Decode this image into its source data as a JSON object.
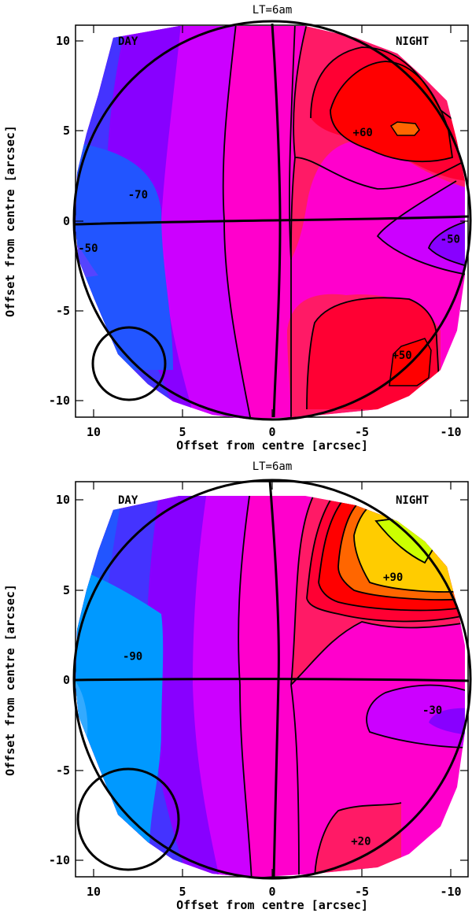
{
  "chart_data": [
    {
      "type": "contour",
      "title": "LT=6am",
      "xlabel": "Offset from centre [arcsec]",
      "ylabel": "Offset from centre [arcsec]",
      "xlim": [
        11,
        -11
      ],
      "ylim": [
        -11,
        11
      ],
      "x_ticks": [
        "10",
        "5",
        "0",
        "-5",
        "-10"
      ],
      "y_ticks": [
        "10",
        "5",
        "0",
        "-5",
        "-10"
      ],
      "day_label": "DAY",
      "night_label": "NIGHT",
      "contour_labels": [
        {
          "text": "+60",
          "x": -5.1,
          "y": 5
        },
        {
          "text": "-70",
          "x": 7.5,
          "y": 1.5
        },
        {
          "text": "-50",
          "x": 10.3,
          "y": -1.5
        },
        {
          "text": "-50",
          "x": -10.0,
          "y": -1
        },
        {
          "text": "+50",
          "x": -7.3,
          "y": -7.5
        }
      ],
      "beam": {
        "x": 8,
        "y": -8,
        "r": 2
      }
    },
    {
      "type": "contour",
      "title": "LT=6am",
      "xlabel": "Offset from centre [arcsec]",
      "ylabel": "Offset from centre [arcsec]",
      "xlim": [
        11,
        -11
      ],
      "ylim": [
        -11,
        11
      ],
      "x_ticks": [
        "10",
        "5",
        "0",
        "-5",
        "-10"
      ],
      "y_ticks": [
        "10",
        "5",
        "0",
        "-5",
        "-10"
      ],
      "day_label": "DAY",
      "night_label": "NIGHT",
      "contour_labels": [
        {
          "text": "+90",
          "x": -6.8,
          "y": 5.7
        },
        {
          "text": "-90",
          "x": 7.8,
          "y": 1.3
        },
        {
          "text": "-30",
          "x": -9.0,
          "y": -1.7
        },
        {
          "text": "+20",
          "x": -5.0,
          "y": -9.0
        }
      ],
      "beam": {
        "x": 8,
        "y": -8,
        "r": 2.8
      }
    }
  ]
}
